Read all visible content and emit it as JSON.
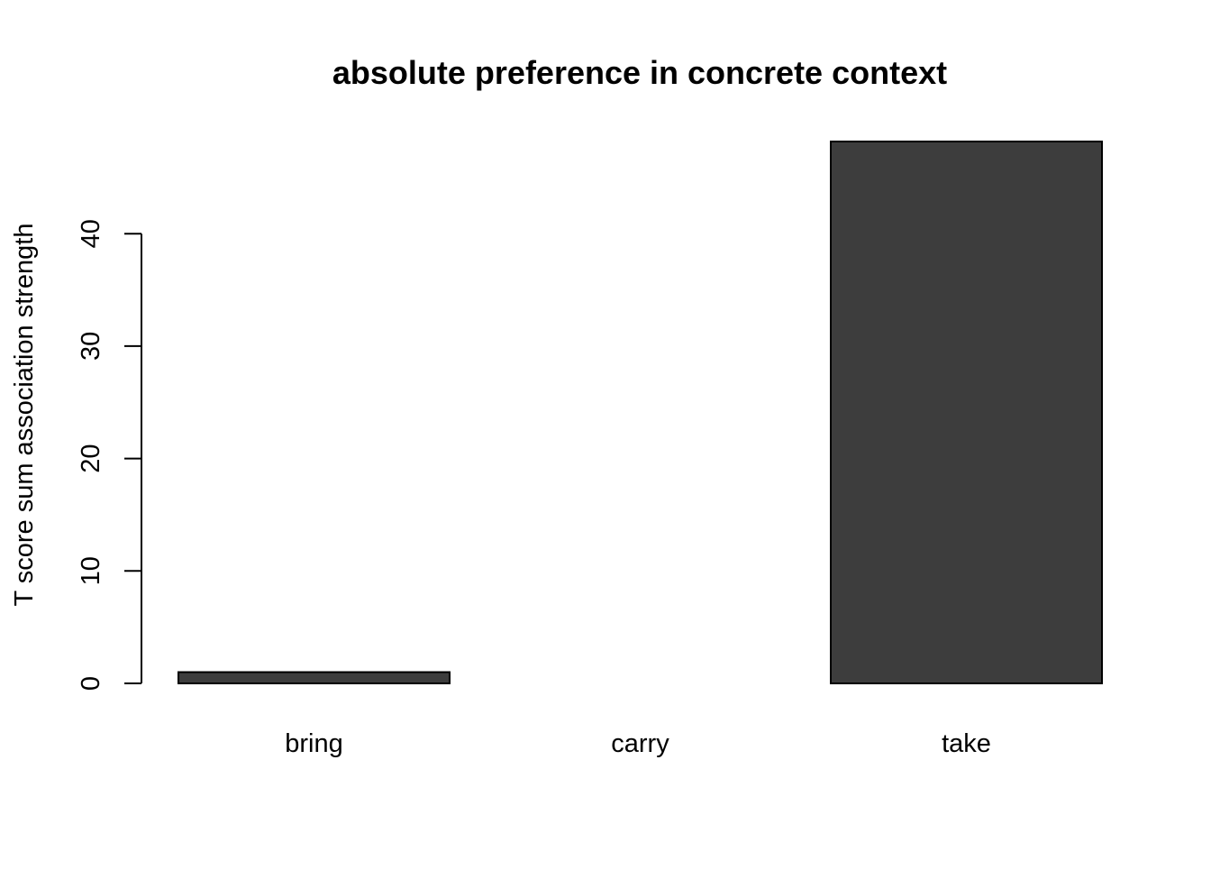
{
  "chart_data": {
    "type": "bar",
    "title": "absolute preference in concrete context",
    "xlabel": "",
    "ylabel": "T score sum association strength",
    "categories": [
      "bring",
      "carry",
      "take"
    ],
    "values": [
      1.0,
      0.0,
      48.2
    ],
    "yticks": [
      0,
      10,
      20,
      30,
      40
    ],
    "ylim": [
      0,
      48.2
    ],
    "grid": false,
    "legend": "none",
    "bar_color": "#3d3d3d",
    "bar_border_color": "#000000"
  }
}
